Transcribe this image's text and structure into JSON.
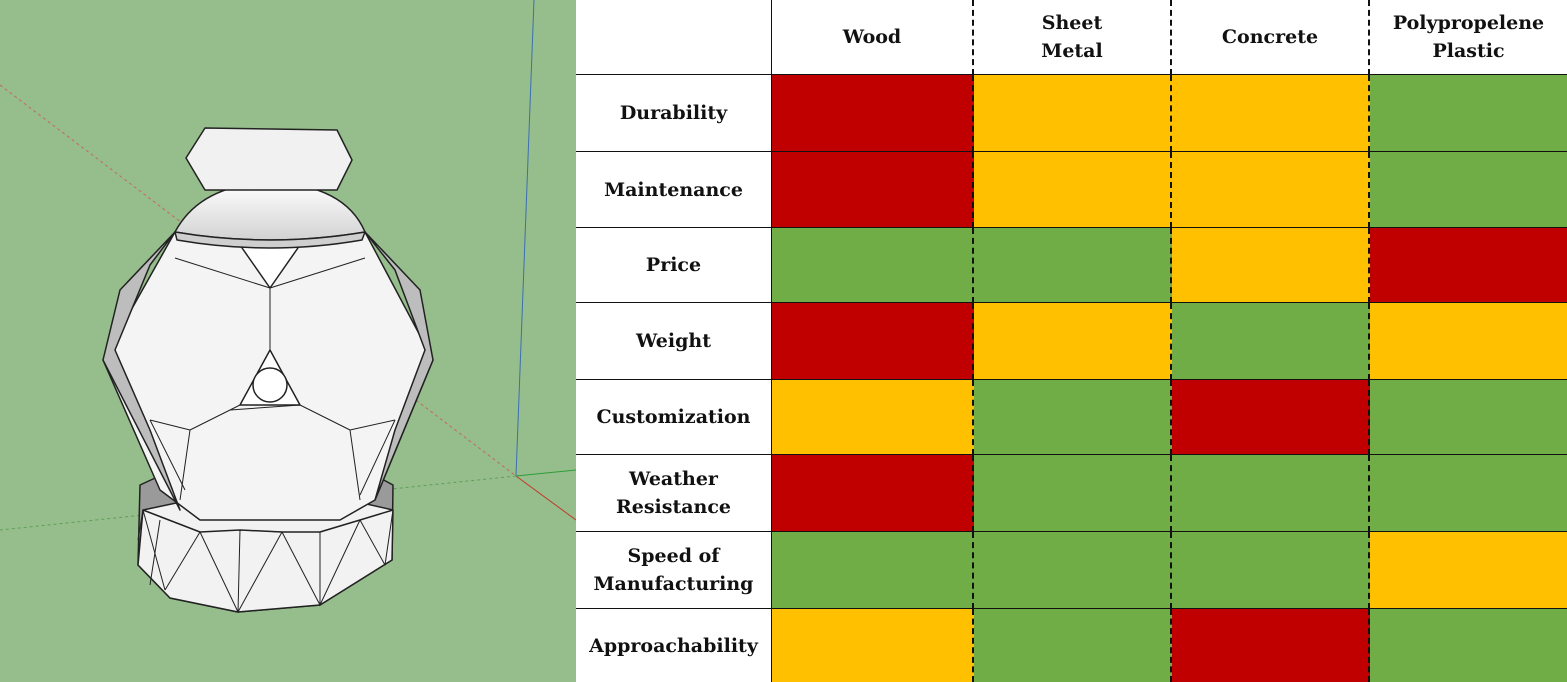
{
  "colors": {
    "poor": "#c00000",
    "fair": "#ffc000",
    "good": "#70ad47",
    "viewport_bg": "#96bd8c"
  },
  "matrix": {
    "corner_label": "",
    "columns": [
      "Wood",
      "Sheet\nMetal",
      "Concrete",
      "Polypropelene\nPlastic"
    ],
    "rows": [
      {
        "label": "Durability",
        "ratings": [
          "poor",
          "fair",
          "fair",
          "good"
        ]
      },
      {
        "label": "Maintenance",
        "ratings": [
          "poor",
          "fair",
          "fair",
          "good"
        ]
      },
      {
        "label": "Price",
        "ratings": [
          "good",
          "good",
          "fair",
          "poor"
        ]
      },
      {
        "label": "Weight",
        "ratings": [
          "poor",
          "fair",
          "good",
          "fair"
        ]
      },
      {
        "label": "Customization",
        "ratings": [
          "fair",
          "good",
          "poor",
          "good"
        ]
      },
      {
        "label": "Weather\nResistance",
        "ratings": [
          "poor",
          "good",
          "good",
          "good"
        ]
      },
      {
        "label": "Speed of\nManufacturing",
        "ratings": [
          "good",
          "good",
          "good",
          "fair"
        ]
      },
      {
        "label": "Approachability",
        "ratings": [
          "fair",
          "good",
          "poor",
          "good"
        ]
      }
    ]
  }
}
